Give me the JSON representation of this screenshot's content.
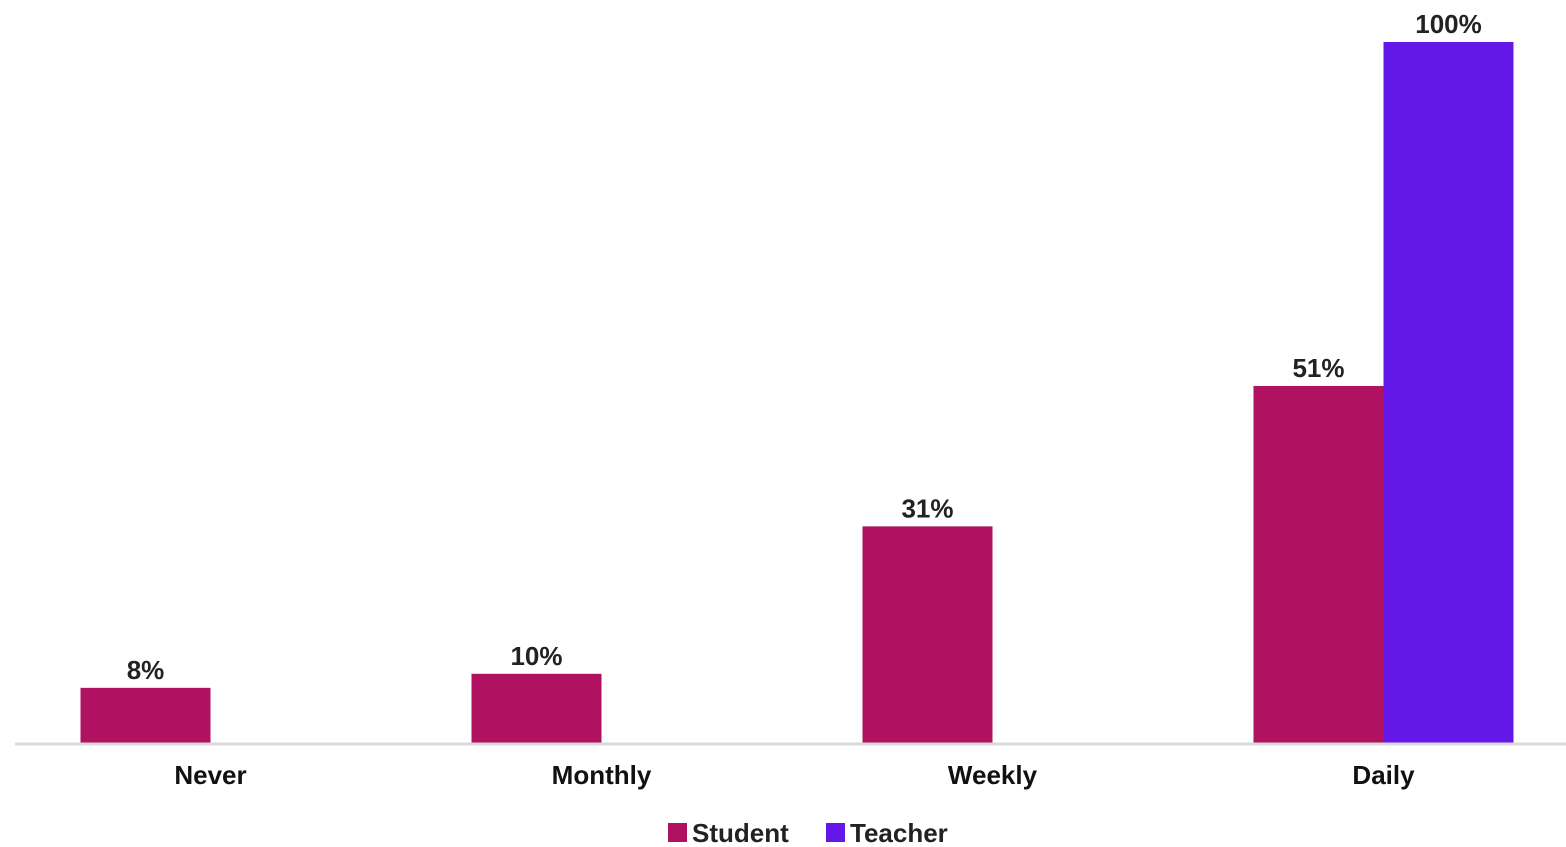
{
  "chart_data": {
    "type": "bar",
    "categories": [
      "Never",
      "Monthly",
      "Weekly",
      "Daily"
    ],
    "series": [
      {
        "name": "Student",
        "color": "#b01160",
        "values": [
          8,
          10,
          31,
          51
        ],
        "labels": [
          "8%",
          "10%",
          "31%",
          "51%"
        ]
      },
      {
        "name": "Teacher",
        "color": "#6418e8",
        "values": [
          null,
          null,
          null,
          100
        ],
        "labels": [
          null,
          null,
          null,
          "100%"
        ]
      }
    ],
    "ylim": [
      0,
      100
    ],
    "grid": false,
    "legend": "bottom-center",
    "axis_color": "#d9d9d9"
  }
}
